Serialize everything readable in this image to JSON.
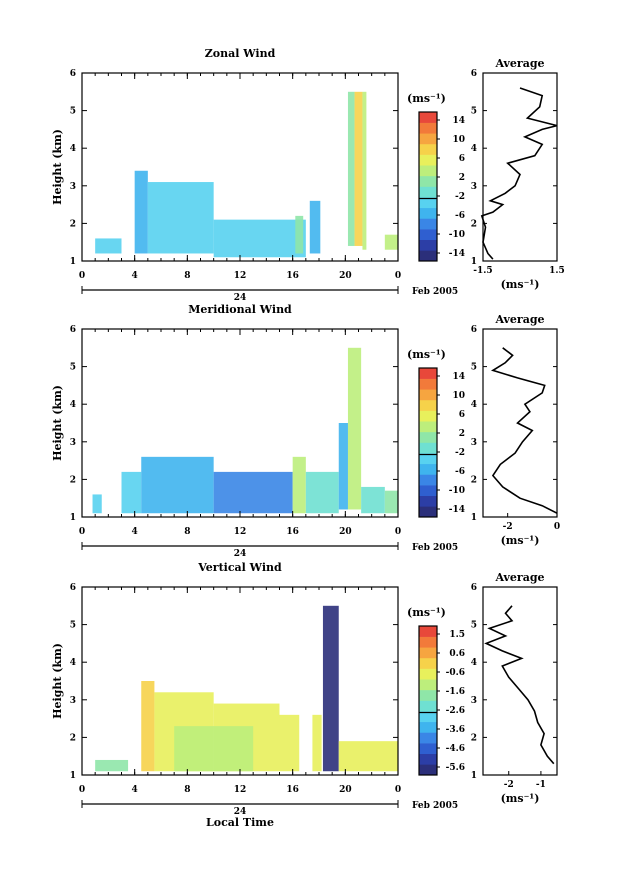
{
  "chart_data": [
    {
      "type": "heatmap",
      "title": "Zonal Wind",
      "ylabel": "Height (km)",
      "xlabel": "",
      "xlim": [
        0,
        24
      ],
      "ylim": [
        1,
        6
      ],
      "x_ticks": [
        "0",
        "4",
        "8",
        "12",
        "16",
        "20",
        "0"
      ],
      "y_ticks": [
        "1",
        "2",
        "3",
        "4",
        "5",
        "6"
      ],
      "date_label": "24",
      "month_label": "Feb 2005",
      "colorbar": {
        "unit": "(ms⁻¹)",
        "ticks": [
          "14",
          "10",
          "6",
          "2",
          "-2",
          "-6",
          "-10",
          "-14"
        ],
        "range": [
          -16,
          16
        ]
      },
      "cells": [
        {
          "x": [
            1,
            3
          ],
          "y": [
            1.2,
            1.6
          ],
          "value": -4
        },
        {
          "x": [
            4,
            5
          ],
          "y": [
            1.2,
            3.4
          ],
          "value": -6
        },
        {
          "x": [
            5,
            10
          ],
          "y": [
            1.2,
            3.1
          ],
          "value": -4
        },
        {
          "x": [
            10,
            17
          ],
          "y": [
            1.1,
            2.1
          ],
          "value": -3
        },
        {
          "x": [
            16.2,
            16.8
          ],
          "y": [
            1.2,
            2.2
          ],
          "value": 2
        },
        {
          "x": [
            17.3,
            18.1
          ],
          "y": [
            1.2,
            2.6
          ],
          "value": -5
        },
        {
          "x": [
            20.2,
            20.7
          ],
          "y": [
            1.4,
            5.5
          ],
          "value": 2
        },
        {
          "x": [
            20.7,
            21.3
          ],
          "y": [
            1.4,
            5.5
          ],
          "value": 8
        },
        {
          "x": [
            21.3,
            21.6
          ],
          "y": [
            1.3,
            5.5
          ],
          "value": 3
        },
        {
          "x": [
            23,
            24.3
          ],
          "y": [
            1.3,
            1.7
          ],
          "value": 3
        }
      ],
      "avg": {
        "title": "Average",
        "xlabel": "(ms⁻¹)",
        "xlim": [
          -1.5,
          1.5
        ],
        "x_ticks": [
          "-1.5",
          "1.5"
        ],
        "y_ticks": [
          "1",
          "2",
          "3",
          "4",
          "5",
          "6"
        ],
        "profile": [
          [
            -1.1,
            1.05
          ],
          [
            -1.3,
            1.2
          ],
          [
            -1.5,
            1.5
          ],
          [
            -1.4,
            1.9
          ],
          [
            -1.55,
            2.2
          ],
          [
            -1.1,
            2.3
          ],
          [
            -0.7,
            2.5
          ],
          [
            -1.2,
            2.6
          ],
          [
            -0.6,
            2.8
          ],
          [
            -0.2,
            3.0
          ],
          [
            0.0,
            3.3
          ],
          [
            -0.5,
            3.6
          ],
          [
            0.6,
            3.8
          ],
          [
            0.9,
            4.1
          ],
          [
            0.2,
            4.3
          ],
          [
            0.9,
            4.5
          ],
          [
            1.5,
            4.6
          ],
          [
            0.3,
            4.8
          ],
          [
            0.8,
            5.1
          ],
          [
            0.9,
            5.4
          ],
          [
            0.0,
            5.6
          ]
        ]
      }
    },
    {
      "type": "heatmap",
      "title": "Meridional Wind",
      "ylabel": "Height (km)",
      "xlabel": "",
      "xlim": [
        0,
        24
      ],
      "ylim": [
        1,
        6
      ],
      "x_ticks": [
        "0",
        "4",
        "8",
        "12",
        "16",
        "20",
        "0"
      ],
      "y_ticks": [
        "1",
        "2",
        "3",
        "4",
        "5",
        "6"
      ],
      "date_label": "24",
      "month_label": "Feb 2005",
      "colorbar": {
        "unit": "(ms⁻¹)",
        "ticks": [
          "14",
          "10",
          "6",
          "2",
          "-2",
          "-6",
          "-10",
          "-14"
        ],
        "range": [
          -16,
          16
        ]
      },
      "cells": [
        {
          "x": [
            0.8,
            1.5
          ],
          "y": [
            1.1,
            1.6
          ],
          "value": -3
        },
        {
          "x": [
            3,
            4.5
          ],
          "y": [
            1.1,
            2.2
          ],
          "value": -4
        },
        {
          "x": [
            4.5,
            10
          ],
          "y": [
            1.1,
            2.6
          ],
          "value": -6
        },
        {
          "x": [
            10,
            16
          ],
          "y": [
            1.1,
            2.2
          ],
          "value": -8
        },
        {
          "x": [
            16,
            17
          ],
          "y": [
            1.1,
            2.6
          ],
          "value": 4
        },
        {
          "x": [
            17,
            19.5
          ],
          "y": [
            1.1,
            2.2
          ],
          "value": -1
        },
        {
          "x": [
            19.5,
            20.2
          ],
          "y": [
            1.2,
            3.5
          ],
          "value": -6
        },
        {
          "x": [
            20.2,
            21.2
          ],
          "y": [
            1.2,
            5.5
          ],
          "value": 4
        },
        {
          "x": [
            21.2,
            23
          ],
          "y": [
            1.1,
            1.8
          ],
          "value": -2
        },
        {
          "x": [
            23,
            24
          ],
          "y": [
            1.1,
            1.7
          ],
          "value": 0
        }
      ],
      "avg": {
        "title": "Average",
        "xlabel": "(ms⁻¹)",
        "xlim": [
          -3,
          0
        ],
        "x_ticks": [
          "-2",
          "0"
        ],
        "y_ticks": [
          "1",
          "2",
          "3",
          "4",
          "5",
          "6"
        ],
        "profile": [
          [
            0.0,
            1.1
          ],
          [
            -0.6,
            1.3
          ],
          [
            -1.5,
            1.5
          ],
          [
            -2.2,
            1.8
          ],
          [
            -2.6,
            2.1
          ],
          [
            -2.3,
            2.4
          ],
          [
            -1.7,
            2.7
          ],
          [
            -1.4,
            3.0
          ],
          [
            -1.0,
            3.3
          ],
          [
            -1.6,
            3.5
          ],
          [
            -1.1,
            3.8
          ],
          [
            -1.3,
            4.0
          ],
          [
            -0.6,
            4.3
          ],
          [
            -0.5,
            4.5
          ],
          [
            -1.6,
            4.7
          ],
          [
            -2.6,
            4.9
          ],
          [
            -2.1,
            5.1
          ],
          [
            -1.8,
            5.3
          ],
          [
            -2.2,
            5.5
          ]
        ]
      }
    },
    {
      "type": "heatmap",
      "title": "Vertical Wind",
      "ylabel": "Height (km)",
      "xlabel": "Local Time",
      "xlim": [
        0,
        24
      ],
      "ylim": [
        1,
        6
      ],
      "x_ticks": [
        "0",
        "4",
        "8",
        "12",
        "16",
        "20",
        "0"
      ],
      "y_ticks": [
        "1",
        "2",
        "3",
        "4",
        "5",
        "6"
      ],
      "date_label": "24",
      "month_label": "Feb 2005",
      "colorbar": {
        "unit": "(ms⁻¹)",
        "ticks": [
          "1.5",
          "0.6",
          "-0.6",
          "-1.6",
          "-2.6",
          "-3.6",
          "-4.6",
          "-5.6"
        ],
        "range": [
          -6,
          2
        ]
      },
      "cells": [
        {
          "x": [
            1,
            3.5
          ],
          "y": [
            1.1,
            1.4
          ],
          "value": -1.6
        },
        {
          "x": [
            4.5,
            5.5
          ],
          "y": [
            1.1,
            3.5
          ],
          "value": 0.2
        },
        {
          "x": [
            5.5,
            10
          ],
          "y": [
            1.1,
            3.2
          ],
          "value": -0.5
        },
        {
          "x": [
            10,
            15
          ],
          "y": [
            1.1,
            2.9
          ],
          "value": -0.8
        },
        {
          "x": [
            15,
            16.5
          ],
          "y": [
            1.1,
            2.6
          ],
          "value": -0.5
        },
        {
          "x": [
            17.5,
            18.2
          ],
          "y": [
            1.1,
            2.6
          ],
          "value": -0.3
        },
        {
          "x": [
            18.3,
            19.5
          ],
          "y": [
            1.1,
            5.5
          ],
          "value": -5.8
        },
        {
          "x": [
            19.5,
            24
          ],
          "y": [
            1.1,
            1.9
          ],
          "value": -0.5
        },
        {
          "x": [
            7,
            13
          ],
          "y": [
            1.1,
            2.3
          ],
          "value": -0.9
        }
      ],
      "avg": {
        "title": "Average",
        "xlabel": "(ms⁻¹)",
        "xlim": [
          -2.8,
          -0.5
        ],
        "x_ticks": [
          "-2",
          "-1"
        ],
        "y_ticks": [
          "1",
          "2",
          "3",
          "4",
          "5",
          "6"
        ],
        "profile": [
          [
            -0.6,
            1.3
          ],
          [
            -0.8,
            1.5
          ],
          [
            -1.0,
            1.8
          ],
          [
            -0.9,
            2.1
          ],
          [
            -1.1,
            2.4
          ],
          [
            -1.2,
            2.7
          ],
          [
            -1.4,
            3.0
          ],
          [
            -1.7,
            3.3
          ],
          [
            -2.0,
            3.6
          ],
          [
            -2.2,
            3.9
          ],
          [
            -1.6,
            4.1
          ],
          [
            -2.2,
            4.3
          ],
          [
            -2.7,
            4.5
          ],
          [
            -2.1,
            4.7
          ],
          [
            -2.6,
            4.9
          ],
          [
            -1.9,
            5.1
          ],
          [
            -2.1,
            5.3
          ],
          [
            -1.9,
            5.5
          ]
        ]
      }
    }
  ]
}
